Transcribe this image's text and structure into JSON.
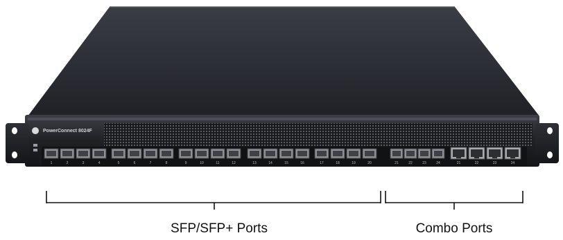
{
  "device": {
    "model_label": "PowerConnect 8024F"
  },
  "port_groups": {
    "sfp_label": "SFP/SFP+ Ports",
    "combo_label": "Combo Ports"
  },
  "port_numbers": {
    "sfp": [
      "1",
      "2",
      "3",
      "4",
      "5",
      "6",
      "7",
      "8",
      "9",
      "10",
      "11",
      "12",
      "13",
      "14",
      "15",
      "16",
      "17",
      "18",
      "19",
      "20"
    ],
    "combo_sfp": [
      "21",
      "22",
      "23",
      "24"
    ],
    "combo_rj45": [
      "21",
      "22",
      "23",
      "24"
    ]
  }
}
